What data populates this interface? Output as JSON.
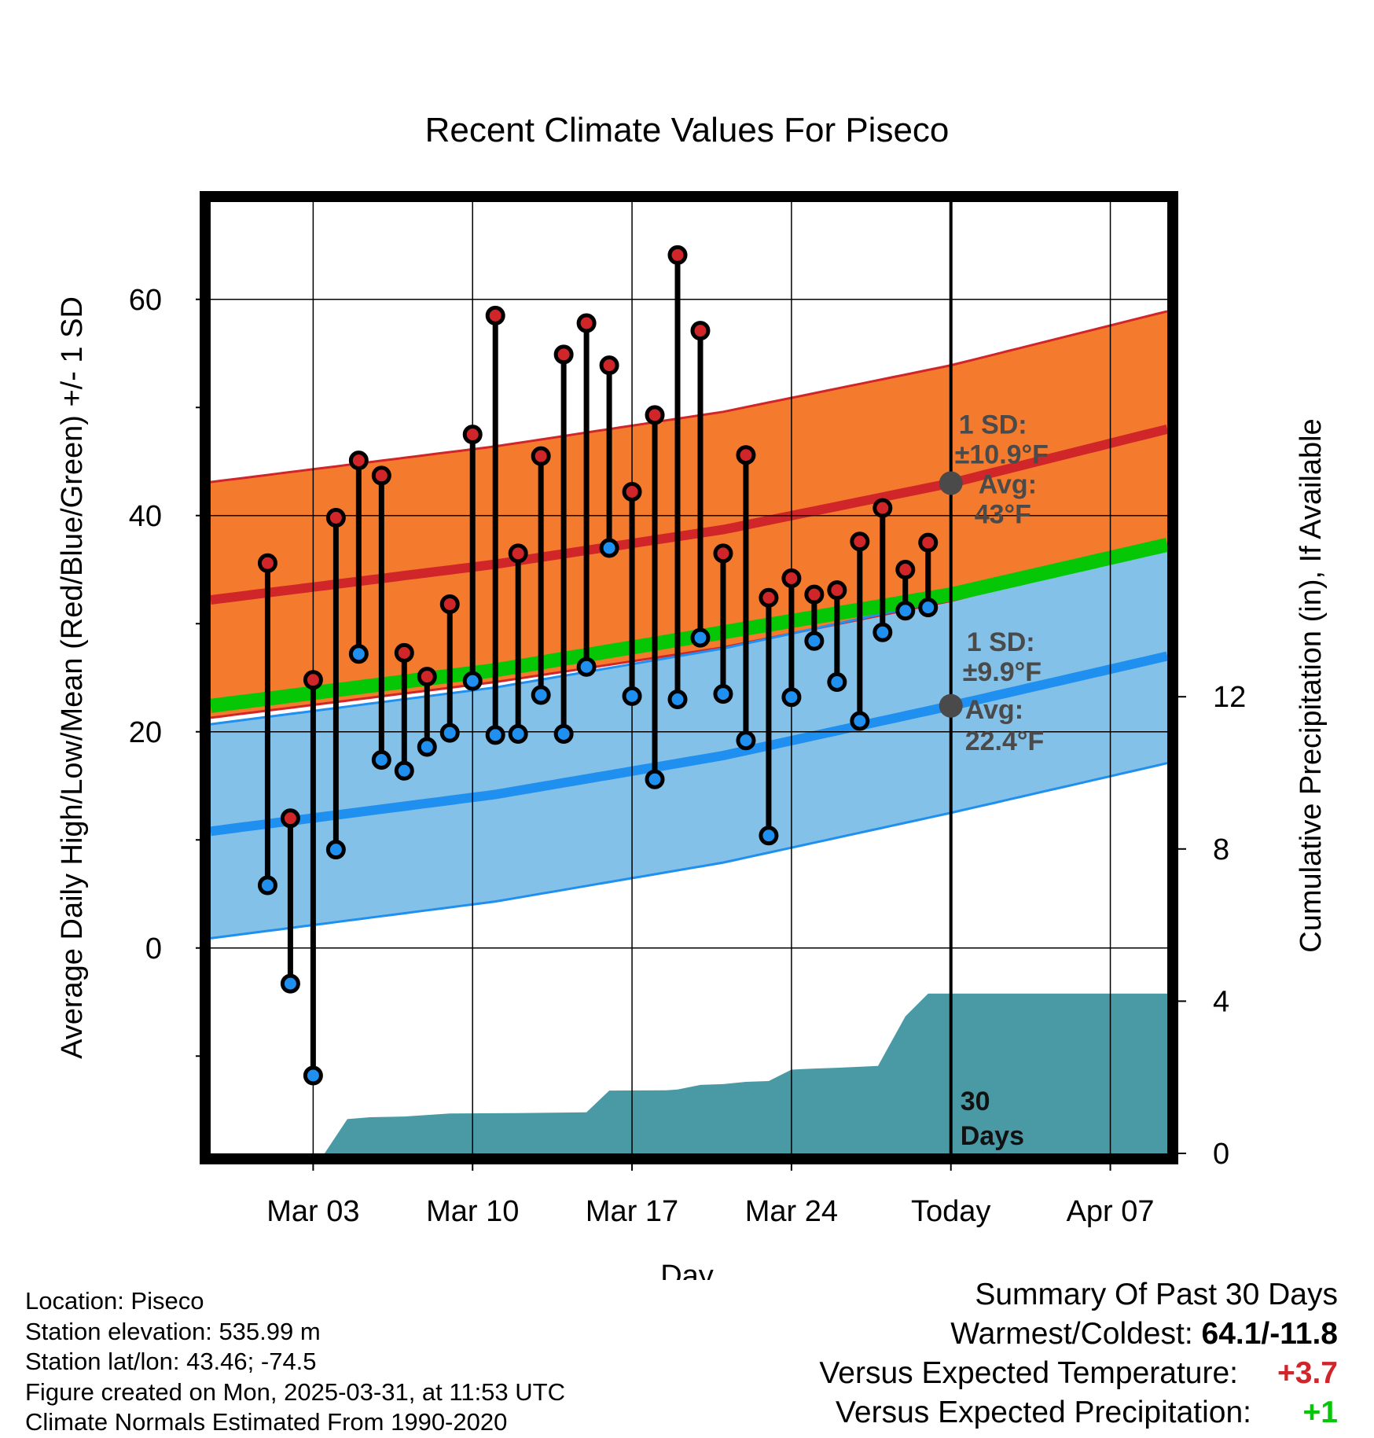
{
  "chart_data": {
    "type": "line",
    "title": "Recent Climate Values For Piseco",
    "xlabel": "Day",
    "ylabel": "Average Daily High/Low/Mean (Red/Blue/Green) +/- 1 SD",
    "ylabel2": "Cumulative Precipitation (in), If Available",
    "x_range_days": [
      -32.5,
      9.5
    ],
    "ylim": [
      -19,
      69
    ],
    "ylim2": [
      0,
      25
    ],
    "y_ticks": [
      0,
      20,
      40,
      60
    ],
    "y_minor_ticks": [
      -10,
      10,
      30,
      50
    ],
    "y2_ticks": [
      0,
      4,
      8,
      12
    ],
    "x_ticks": [
      {
        "day": -28,
        "label": "Mar 03"
      },
      {
        "day": -21,
        "label": "Mar 10"
      },
      {
        "day": -14,
        "label": "Mar 17"
      },
      {
        "day": -7,
        "label": "Mar 24"
      },
      {
        "day": 0,
        "label": "Today"
      },
      {
        "day": 7,
        "label": "Apr 07"
      }
    ],
    "today_marker_label": "30\nDays",
    "normals": {
      "high_mean": [
        {
          "day": -32.5,
          "value": 32.2
        },
        {
          "day": -20,
          "value": 35.5
        },
        {
          "day": -10,
          "value": 38.7
        },
        {
          "day": 0,
          "value": 43.0
        },
        {
          "day": 9.5,
          "value": 48.0
        }
      ],
      "high_sd": 10.9,
      "low_mean": [
        {
          "day": -32.5,
          "value": 10.8
        },
        {
          "day": -20,
          "value": 14.2
        },
        {
          "day": -10,
          "value": 17.8
        },
        {
          "day": 0,
          "value": 22.4
        },
        {
          "day": 9.5,
          "value": 27.0
        }
      ],
      "low_sd": 9.9,
      "mean": [
        {
          "day": -32.5,
          "value": 22.4
        },
        {
          "day": -20,
          "value": 25.7
        },
        {
          "day": -10,
          "value": 29.2
        },
        {
          "day": 0,
          "value": 32.7
        },
        {
          "day": 9.5,
          "value": 37.3
        }
      ]
    },
    "observations": [
      {
        "day": -30,
        "high": 35.6,
        "low": 5.8
      },
      {
        "day": -29,
        "high": 12.0,
        "low": -3.3
      },
      {
        "day": -28,
        "high": 24.8,
        "low": -11.8
      },
      {
        "day": -27,
        "high": 39.8,
        "low": 9.1
      },
      {
        "day": -26,
        "high": 45.1,
        "low": 27.2
      },
      {
        "day": -25,
        "high": 43.7,
        "low": 17.4
      },
      {
        "day": -24,
        "high": 27.3,
        "low": 16.4
      },
      {
        "day": -23,
        "high": 25.1,
        "low": 18.6
      },
      {
        "day": -22,
        "high": 31.8,
        "low": 19.9
      },
      {
        "day": -21,
        "high": 47.5,
        "low": 24.7
      },
      {
        "day": -20,
        "high": 58.5,
        "low": 19.7
      },
      {
        "day": -19,
        "high": 36.5,
        "low": 19.8
      },
      {
        "day": -18,
        "high": 45.5,
        "low": 23.4
      },
      {
        "day": -17,
        "high": 54.9,
        "low": 19.8
      },
      {
        "day": -16,
        "high": 57.8,
        "low": 26.0
      },
      {
        "day": -15,
        "high": 53.9,
        "low": 37.0
      },
      {
        "day": -14,
        "high": 42.2,
        "low": 23.3
      },
      {
        "day": -13,
        "high": 49.3,
        "low": 15.6
      },
      {
        "day": -12,
        "high": 64.1,
        "low": 23.0
      },
      {
        "day": -11,
        "high": 57.1,
        "low": 28.7
      },
      {
        "day": -10,
        "high": 36.5,
        "low": 23.5
      },
      {
        "day": -9,
        "high": 45.6,
        "low": 19.2
      },
      {
        "day": -8,
        "high": 32.4,
        "low": 10.4
      },
      {
        "day": -7,
        "high": 34.2,
        "low": 23.2
      },
      {
        "day": -6,
        "high": 32.7,
        "low": 28.4
      },
      {
        "day": -5,
        "high": 33.1,
        "low": 24.6
      },
      {
        "day": -4,
        "high": 37.6,
        "low": 21.0
      },
      {
        "day": -3,
        "high": 40.7,
        "low": 29.2
      },
      {
        "day": -2,
        "high": 35.0,
        "low": 31.2
      },
      {
        "day": -1,
        "high": 37.5,
        "low": 31.5
      }
    ],
    "cumulative_precip": [
      {
        "day": -32.5,
        "value": 0
      },
      {
        "day": -27.5,
        "value": 0
      },
      {
        "day": -26.5,
        "value": 0.9
      },
      {
        "day": -25.5,
        "value": 0.95
      },
      {
        "day": -24,
        "value": 0.97
      },
      {
        "day": -22,
        "value": 1.05
      },
      {
        "day": -19,
        "value": 1.06
      },
      {
        "day": -16,
        "value": 1.08
      },
      {
        "day": -15,
        "value": 1.65
      },
      {
        "day": -12.5,
        "value": 1.66
      },
      {
        "day": -12,
        "value": 1.68
      },
      {
        "day": -11,
        "value": 1.8
      },
      {
        "day": -10,
        "value": 1.82
      },
      {
        "day": -9,
        "value": 1.88
      },
      {
        "day": -8,
        "value": 1.9
      },
      {
        "day": -7,
        "value": 2.2
      },
      {
        "day": -6,
        "value": 2.23
      },
      {
        "day": -5,
        "value": 2.25
      },
      {
        "day": -3.2,
        "value": 2.3
      },
      {
        "day": -2,
        "value": 3.6
      },
      {
        "day": -1,
        "value": 4.2
      },
      {
        "day": 0,
        "value": 4.2
      },
      {
        "day": 9.5,
        "value": 4.2
      }
    ],
    "annotations": {
      "high": [
        "1 SD:",
        "±10.9°F",
        "Avg:",
        "43°F"
      ],
      "low": [
        "1 SD:",
        "±9.9°F",
        "Avg:",
        "22.4°F"
      ]
    },
    "colors": {
      "high_band": "#f47b2e",
      "high_line": "#d0262a",
      "low_band": "#83c1e8",
      "low_line": "#1f8ff0",
      "mean_line": "#05c705",
      "overlap": "#8b1111",
      "precip": "#4a9aa5",
      "marker_point": "#4a4a4a"
    }
  },
  "footer": {
    "location": "Location: Piseco",
    "elevation": "Station elevation: 535.99 m",
    "latlon": "Station lat/lon: 43.46; -74.5",
    "created": "Figure created on Mon, 2025-03-31, at 11:53 UTC",
    "normals": "Climate Normals Estimated From 1990-2020"
  },
  "summary": {
    "heading": "Summary Of Past 30 Days",
    "warm_label": "Warmest/Coldest:",
    "warm_value": "64.1/-11.8",
    "temp_label": "Versus Expected Temperature:",
    "temp_value": "+3.7",
    "temp_color": "#d0262a",
    "precip_label": "Versus Expected Precipitation:",
    "precip_value": "+1",
    "precip_color": "#05c705"
  }
}
